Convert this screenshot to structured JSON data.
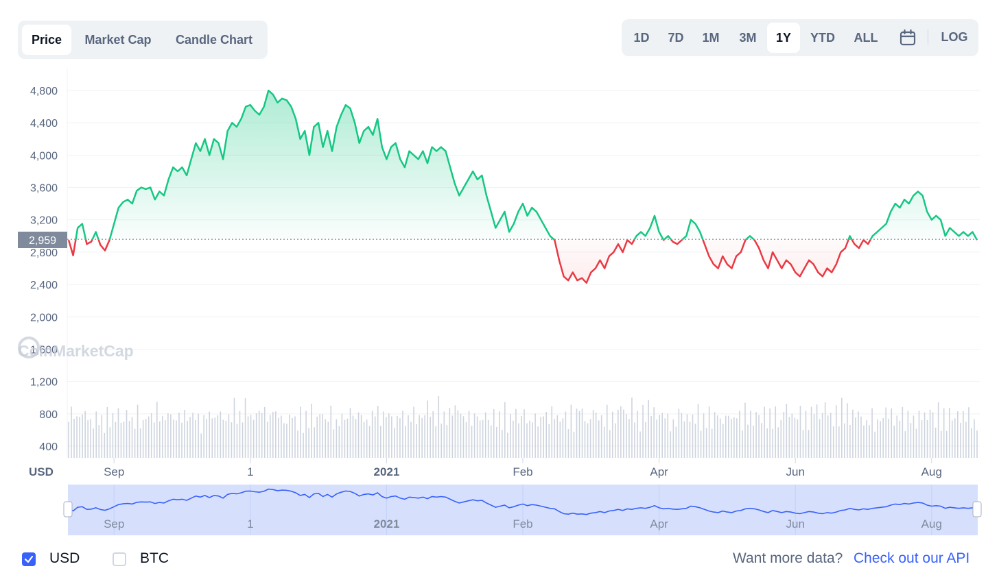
{
  "tabs": [
    {
      "label": "Price",
      "active": true
    },
    {
      "label": "Market Cap",
      "active": false
    },
    {
      "label": "Candle Chart",
      "active": false
    }
  ],
  "ranges": [
    {
      "label": "1D",
      "active": false
    },
    {
      "label": "7D",
      "active": false
    },
    {
      "label": "1M",
      "active": false
    },
    {
      "label": "3M",
      "active": false
    },
    {
      "label": "1Y",
      "active": true
    },
    {
      "label": "YTD",
      "active": false
    },
    {
      "label": "ALL",
      "active": false
    }
  ],
  "log_label": "LOG",
  "calendar_icon": "calendar-icon",
  "currency_label": "USD",
  "watermark": "CoinMarketCap",
  "current_price_label": "2,959",
  "footer": {
    "usd_label": "USD",
    "usd_checked": true,
    "btc_label": "BTC",
    "btc_checked": false,
    "more_text": "Want more data?",
    "api_link": "Check out our API"
  },
  "colors": {
    "up": "#16c784",
    "down": "#ea3943",
    "accent": "#3861fb",
    "nav": "#d6e0fd",
    "nav_line": "#3861fb"
  },
  "chart_data": {
    "type": "area",
    "reference_value": 2959,
    "ylim": [
      300,
      5000
    ],
    "yticks": [
      400,
      800,
      1200,
      1600,
      2000,
      2400,
      2800,
      3200,
      3600,
      4000,
      4400,
      4800
    ],
    "ytick_labels": [
      "400",
      "800",
      "1,200",
      "1,600",
      "2,000",
      "2,400",
      "2,800",
      "3,200",
      "3,600",
      "4,000",
      "4,400",
      "4,800"
    ],
    "xticks": [
      {
        "day": 10,
        "label": "Sep",
        "bold": false
      },
      {
        "day": 40,
        "label": "1",
        "bold": false
      },
      {
        "day": 70,
        "label": "2021",
        "bold": true
      },
      {
        "day": 100,
        "label": "Feb",
        "bold": false
      },
      {
        "day": 130,
        "label": "Apr",
        "bold": false
      },
      {
        "day": 160,
        "label": "Jun",
        "bold": false
      },
      {
        "day": 190,
        "label": "Aug",
        "bold": false
      }
    ],
    "navigator_labels": [
      "Sep",
      "1",
      "2021",
      "Feb",
      "Apr",
      "Jun",
      "Aug"
    ],
    "price_points": [
      [
        0,
        2950
      ],
      [
        1,
        2760
      ],
      [
        2,
        3100
      ],
      [
        3,
        3150
      ],
      [
        4,
        2900
      ],
      [
        5,
        2930
      ],
      [
        6,
        3050
      ],
      [
        7,
        2890
      ],
      [
        8,
        2820
      ],
      [
        9,
        2950
      ],
      [
        10,
        3150
      ],
      [
        11,
        3350
      ],
      [
        12,
        3420
      ],
      [
        13,
        3450
      ],
      [
        14,
        3400
      ],
      [
        15,
        3560
      ],
      [
        16,
        3600
      ],
      [
        17,
        3580
      ],
      [
        18,
        3600
      ],
      [
        19,
        3450
      ],
      [
        20,
        3550
      ],
      [
        21,
        3500
      ],
      [
        22,
        3700
      ],
      [
        23,
        3850
      ],
      [
        24,
        3800
      ],
      [
        25,
        3850
      ],
      [
        26,
        3750
      ],
      [
        27,
        3950
      ],
      [
        28,
        4150
      ],
      [
        29,
        4050
      ],
      [
        30,
        4200
      ],
      [
        31,
        4000
      ],
      [
        32,
        4200
      ],
      [
        33,
        4150
      ],
      [
        34,
        3950
      ],
      [
        35,
        4300
      ],
      [
        36,
        4400
      ],
      [
        37,
        4350
      ],
      [
        38,
        4450
      ],
      [
        39,
        4600
      ],
      [
        40,
        4620
      ],
      [
        41,
        4550
      ],
      [
        42,
        4500
      ],
      [
        43,
        4600
      ],
      [
        44,
        4800
      ],
      [
        45,
        4750
      ],
      [
        46,
        4650
      ],
      [
        47,
        4700
      ],
      [
        48,
        4680
      ],
      [
        49,
        4600
      ],
      [
        50,
        4450
      ],
      [
        51,
        4200
      ],
      [
        52,
        4300
      ],
      [
        53,
        4000
      ],
      [
        54,
        4350
      ],
      [
        55,
        4400
      ],
      [
        56,
        4100
      ],
      [
        57,
        4300
      ],
      [
        58,
        4050
      ],
      [
        59,
        4350
      ],
      [
        60,
        4500
      ],
      [
        61,
        4620
      ],
      [
        62,
        4580
      ],
      [
        63,
        4400
      ],
      [
        64,
        4150
      ],
      [
        65,
        4300
      ],
      [
        66,
        4350
      ],
      [
        67,
        4250
      ],
      [
        68,
        4450
      ],
      [
        69,
        4100
      ],
      [
        70,
        3950
      ],
      [
        71,
        4100
      ],
      [
        72,
        4150
      ],
      [
        73,
        3950
      ],
      [
        74,
        3850
      ],
      [
        75,
        4050
      ],
      [
        76,
        4000
      ],
      [
        77,
        3950
      ],
      [
        78,
        4050
      ],
      [
        79,
        3900
      ],
      [
        80,
        4100
      ],
      [
        81,
        4050
      ],
      [
        82,
        4100
      ],
      [
        83,
        4050
      ],
      [
        84,
        3850
      ],
      [
        85,
        3650
      ],
      [
        86,
        3500
      ],
      [
        87,
        3600
      ],
      [
        88,
        3700
      ],
      [
        89,
        3800
      ],
      [
        90,
        3700
      ],
      [
        91,
        3750
      ],
      [
        92,
        3500
      ],
      [
        93,
        3300
      ],
      [
        94,
        3100
      ],
      [
        95,
        3200
      ],
      [
        96,
        3300
      ],
      [
        97,
        3050
      ],
      [
        98,
        3150
      ],
      [
        99,
        3300
      ],
      [
        100,
        3400
      ],
      [
        101,
        3250
      ],
      [
        102,
        3350
      ],
      [
        103,
        3300
      ],
      [
        104,
        3200
      ],
      [
        105,
        3100
      ],
      [
        106,
        3000
      ],
      [
        107,
        2950
      ],
      [
        108,
        2700
      ],
      [
        109,
        2500
      ],
      [
        110,
        2450
      ],
      [
        111,
        2550
      ],
      [
        112,
        2450
      ],
      [
        113,
        2480
      ],
      [
        114,
        2420
      ],
      [
        115,
        2550
      ],
      [
        116,
        2600
      ],
      [
        117,
        2700
      ],
      [
        118,
        2600
      ],
      [
        119,
        2750
      ],
      [
        120,
        2800
      ],
      [
        121,
        2900
      ],
      [
        122,
        2800
      ],
      [
        123,
        2950
      ],
      [
        124,
        2900
      ],
      [
        125,
        3000
      ],
      [
        126,
        3050
      ],
      [
        127,
        3000
      ],
      [
        128,
        3100
      ],
      [
        129,
        3250
      ],
      [
        130,
        3050
      ],
      [
        131,
        2950
      ],
      [
        132,
        3000
      ],
      [
        133,
        2930
      ],
      [
        134,
        2900
      ],
      [
        135,
        2950
      ],
      [
        136,
        3000
      ],
      [
        137,
        3200
      ],
      [
        138,
        3150
      ],
      [
        139,
        3050
      ],
      [
        140,
        2900
      ],
      [
        141,
        2750
      ],
      [
        142,
        2650
      ],
      [
        143,
        2600
      ],
      [
        144,
        2750
      ],
      [
        145,
        2650
      ],
      [
        146,
        2600
      ],
      [
        147,
        2750
      ],
      [
        148,
        2800
      ],
      [
        149,
        2950
      ],
      [
        150,
        3000
      ],
      [
        151,
        2950
      ],
      [
        152,
        2850
      ],
      [
        153,
        2700
      ],
      [
        154,
        2600
      ],
      [
        155,
        2800
      ],
      [
        156,
        2700
      ],
      [
        157,
        2600
      ],
      [
        158,
        2700
      ],
      [
        159,
        2650
      ],
      [
        160,
        2550
      ],
      [
        161,
        2500
      ],
      [
        162,
        2600
      ],
      [
        163,
        2700
      ],
      [
        164,
        2650
      ],
      [
        165,
        2550
      ],
      [
        166,
        2500
      ],
      [
        167,
        2600
      ],
      [
        168,
        2550
      ],
      [
        169,
        2650
      ],
      [
        170,
        2800
      ],
      [
        171,
        2850
      ],
      [
        172,
        3000
      ],
      [
        173,
        2900
      ],
      [
        174,
        2850
      ],
      [
        175,
        2950
      ],
      [
        176,
        2900
      ],
      [
        177,
        3000
      ],
      [
        178,
        3050
      ],
      [
        179,
        3100
      ],
      [
        180,
        3150
      ],
      [
        181,
        3300
      ],
      [
        182,
        3400
      ],
      [
        183,
        3350
      ],
      [
        184,
        3450
      ],
      [
        185,
        3400
      ],
      [
        186,
        3500
      ],
      [
        187,
        3550
      ],
      [
        188,
        3500
      ],
      [
        189,
        3300
      ],
      [
        190,
        3200
      ],
      [
        191,
        3250
      ],
      [
        192,
        3200
      ],
      [
        193,
        3000
      ],
      [
        194,
        3100
      ],
      [
        195,
        3050
      ],
      [
        196,
        3000
      ],
      [
        197,
        3050
      ],
      [
        198,
        3000
      ],
      [
        199,
        3050
      ],
      [
        200,
        2950
      ]
    ],
    "volume_values": [
      70,
      60,
      65,
      50,
      60,
      55,
      62,
      52,
      48,
      45,
      55,
      58,
      50,
      45,
      60,
      48,
      55,
      50,
      65,
      45,
      52,
      58,
      60,
      48,
      55,
      62,
      50,
      45,
      58,
      52,
      60,
      48,
      70,
      55,
      50,
      65,
      52,
      58,
      45,
      60,
      55,
      50,
      62,
      48,
      58,
      55,
      60,
      52,
      45,
      50,
      68,
      55,
      60,
      50,
      58,
      62,
      48,
      55,
      52,
      60,
      70,
      65,
      55,
      58,
      72,
      60,
      55,
      50,
      62,
      58
    ]
  }
}
